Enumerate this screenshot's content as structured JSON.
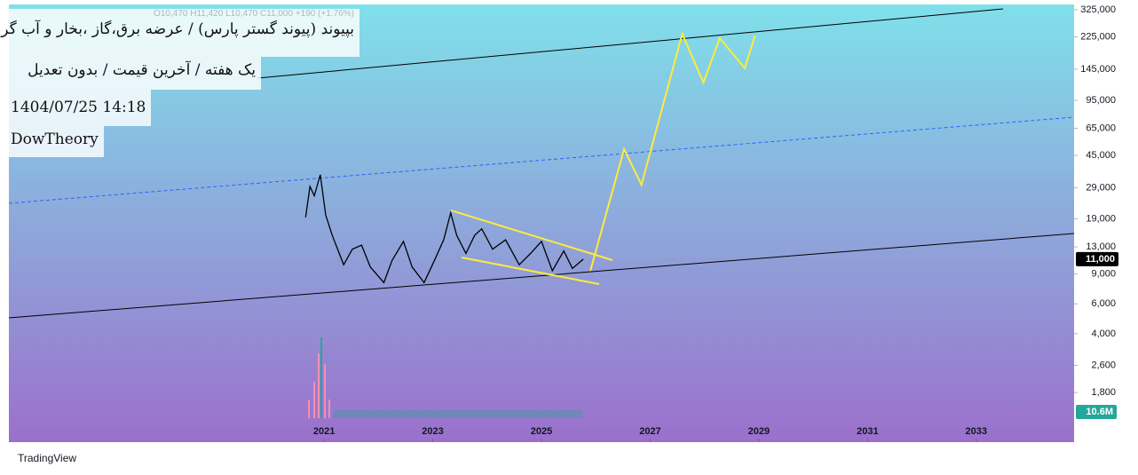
{
  "chart_data": {
    "type": "line",
    "header": {
      "title": "بپیوند (پیوند گستر پارس) / عرضه برق،گاز ،بخار و آب گرم",
      "ohlc": "O10,470  H11,420  L10,470  C11,000  +190 (+1.76%)",
      "settings": "یک هفته / آخرین قیمت / بدون تعدیل",
      "timestamp": "1404/07/25 14:18",
      "author": "DowTheory"
    },
    "log_scale": true,
    "xlim": [
      2015.2,
      2034.8
    ],
    "xticks": [
      2021,
      2023,
      2025,
      2027,
      2029,
      2031,
      2033
    ],
    "ylim": [
      918,
      349000
    ],
    "yticks": [
      {
        "value": 1800,
        "label": "1,800"
      },
      {
        "value": 2600,
        "label": "2,600"
      },
      {
        "value": 4000,
        "label": "4,000"
      },
      {
        "value": 6000,
        "label": "6,000"
      },
      {
        "value": 9000,
        "label": "9,000"
      },
      {
        "value": 13000,
        "label": "13,000"
      },
      {
        "value": 19000,
        "label": "19,000"
      },
      {
        "value": 29000,
        "label": "29,000"
      },
      {
        "value": 45000,
        "label": "45,000"
      },
      {
        "value": 65000,
        "label": "65,000"
      },
      {
        "value": 95000,
        "label": "95,000"
      },
      {
        "value": 145000,
        "label": "145,000"
      },
      {
        "value": 225000,
        "label": "225,000"
      },
      {
        "value": 325000,
        "label": "325,000"
      }
    ],
    "series": [
      {
        "color": "#000000",
        "x": [
          2020.66,
          2020.74,
          2020.82,
          2020.93,
          2021.03,
          2021.15,
          2021.36,
          2021.52,
          2021.69,
          2021.85,
          2022.1,
          2022.25,
          2022.46,
          2022.62,
          2022.84,
          2023.03,
          2023.2,
          2023.33,
          2023.44,
          2023.61,
          2023.77,
          2023.9,
          2024.1,
          2024.34,
          2024.59,
          2024.8,
          2025.0,
          2025.2,
          2025.41,
          2025.57,
          2025.77
        ],
        "values": [
          19400,
          29500,
          26000,
          34600,
          20000,
          15200,
          10200,
          12600,
          13300,
          9900,
          8000,
          10800,
          14000,
          9900,
          8000,
          10800,
          14300,
          20600,
          15200,
          11900,
          15200,
          16600,
          12600,
          14300,
          10200,
          11900,
          14000,
          9400,
          12300,
          9700,
          11000
        ]
      },
      {
        "color": "#ffeb3b",
        "x": [
          2025.9,
          2026.52,
          2026.84,
          2027.59,
          2027.98,
          2028.28,
          2028.74,
          2028.93
        ],
        "values": [
          9400,
          49000,
          30200,
          234000,
          121000,
          221000,
          147000,
          229000
        ]
      }
    ],
    "last_price": {
      "value": 11000,
      "label": "11,000"
    },
    "volume_label": "10.6M",
    "brand": "TradingView"
  }
}
